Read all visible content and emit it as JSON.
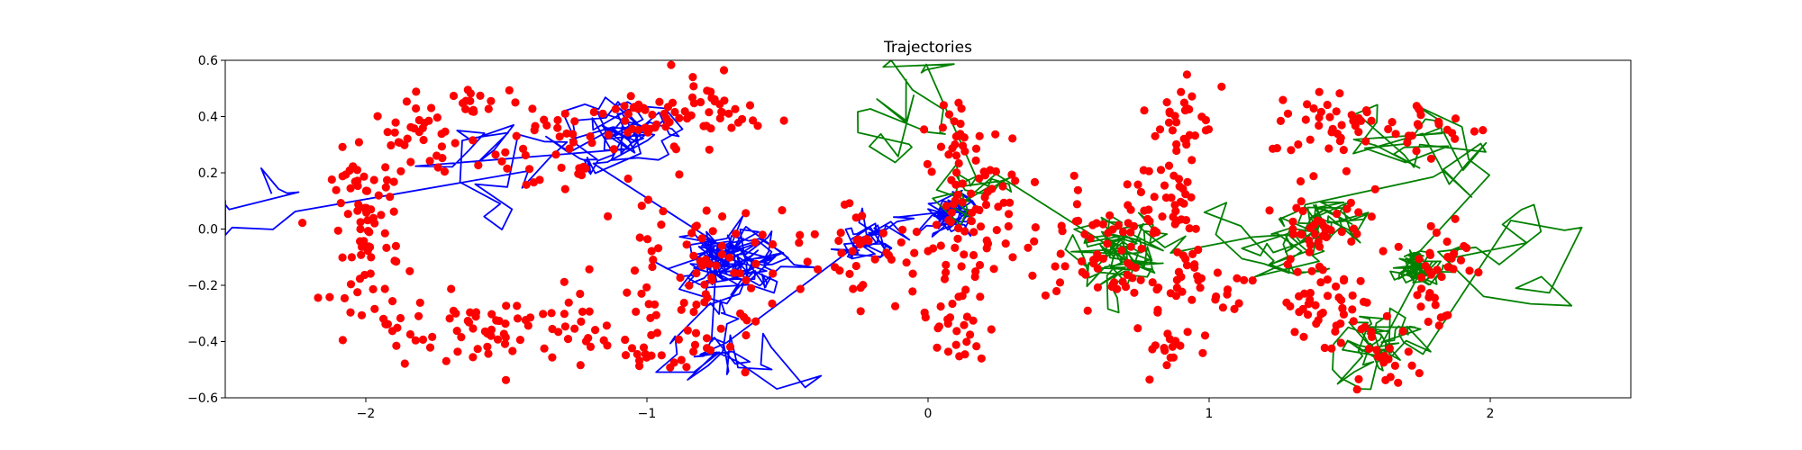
{
  "chart_data": {
    "type": "scatter",
    "title": "Trajectories",
    "xlabel": "",
    "ylabel": "",
    "xlim": [
      -2.5,
      2.5
    ],
    "ylim": [
      -0.6,
      0.6
    ],
    "xticks": [
      -2,
      -1,
      0,
      1,
      2
    ],
    "xtick_labels": [
      "−2",
      "−1",
      "0",
      "1",
      "2"
    ],
    "yticks": [
      -0.6,
      -0.4,
      -0.2,
      0.0,
      0.2,
      0.4,
      0.6
    ],
    "ytick_labels": [
      "−0.6",
      "−0.4",
      "−0.2",
      "0.0",
      "0.2",
      "0.4",
      "0.6"
    ],
    "grid": false,
    "colors": {
      "points": "#ff0000",
      "left_trajectory": "#0000ff",
      "right_trajectory": "#008000"
    },
    "series": [
      {
        "kind": "points",
        "color": "#ff0000",
        "clusters": [
          {
            "cx": -2.0,
            "cy": 0.0,
            "sx": 0.06,
            "sy": 0.14,
            "n": 70
          },
          {
            "cx": -1.8,
            "cy": 0.32,
            "sx": 0.09,
            "sy": 0.07,
            "n": 35
          },
          {
            "cx": -1.6,
            "cy": 0.44,
            "sx": 0.07,
            "sy": 0.04,
            "n": 18
          },
          {
            "cx": -1.42,
            "cy": 0.3,
            "sx": 0.09,
            "sy": 0.06,
            "n": 20
          },
          {
            "cx": -1.5,
            "cy": -0.37,
            "sx": 0.18,
            "sy": 0.07,
            "n": 60
          },
          {
            "cx": -1.88,
            "cy": -0.33,
            "sx": 0.05,
            "sy": 0.06,
            "n": 14
          },
          {
            "cx": -1.25,
            "cy": 0.22,
            "sx": 0.1,
            "sy": 0.07,
            "n": 15
          },
          {
            "cx": -1.0,
            "cy": 0.38,
            "sx": 0.1,
            "sy": 0.07,
            "n": 40
          },
          {
            "cx": -0.75,
            "cy": 0.41,
            "sx": 0.08,
            "sy": 0.06,
            "n": 30
          },
          {
            "cx": -0.8,
            "cy": -0.12,
            "sx": 0.18,
            "sy": 0.12,
            "n": 75
          },
          {
            "cx": -0.95,
            "cy": -0.4,
            "sx": 0.16,
            "sy": 0.06,
            "n": 35
          },
          {
            "cx": -0.25,
            "cy": -0.06,
            "sx": 0.08,
            "sy": 0.1,
            "n": 30
          },
          {
            "cx": 0.12,
            "cy": 0.0,
            "sx": 0.09,
            "sy": 0.16,
            "n": 80
          },
          {
            "cx": 0.1,
            "cy": -0.35,
            "sx": 0.06,
            "sy": 0.08,
            "n": 25
          },
          {
            "cx": 0.08,
            "cy": 0.33,
            "sx": 0.05,
            "sy": 0.07,
            "n": 18
          },
          {
            "cx": 0.6,
            "cy": 0.02,
            "sx": 0.09,
            "sy": 0.08,
            "n": 30
          },
          {
            "cx": 0.6,
            "cy": -0.17,
            "sx": 0.09,
            "sy": 0.05,
            "n": 22
          },
          {
            "cx": 0.9,
            "cy": 0.38,
            "sx": 0.05,
            "sy": 0.08,
            "n": 30
          },
          {
            "cx": 0.85,
            "cy": 0.1,
            "sx": 0.08,
            "sy": 0.1,
            "n": 40
          },
          {
            "cx": 0.95,
            "cy": -0.2,
            "sx": 0.12,
            "sy": 0.07,
            "n": 40
          },
          {
            "cx": 0.87,
            "cy": -0.43,
            "sx": 0.05,
            "sy": 0.05,
            "n": 15
          },
          {
            "cx": 1.45,
            "cy": 0.38,
            "sx": 0.12,
            "sy": 0.06,
            "n": 40
          },
          {
            "cx": 1.8,
            "cy": 0.36,
            "sx": 0.1,
            "sy": 0.05,
            "n": 20
          },
          {
            "cx": 1.4,
            "cy": 0.02,
            "sx": 0.08,
            "sy": 0.12,
            "n": 50
          },
          {
            "cx": 1.42,
            "cy": -0.3,
            "sx": 0.1,
            "sy": 0.08,
            "n": 40
          },
          {
            "cx": 1.8,
            "cy": -0.15,
            "sx": 0.06,
            "sy": 0.12,
            "n": 40
          },
          {
            "cx": 1.6,
            "cy": -0.48,
            "sx": 0.07,
            "sy": 0.03,
            "n": 15
          }
        ]
      },
      {
        "kind": "trajectory",
        "color": "#0000ff",
        "x_range": [
          -2.5,
          0.3
        ],
        "y_range": [
          -0.6,
          0.6
        ],
        "centers": [
          {
            "cx": -2.3,
            "cy": 0.05,
            "step": 0.15,
            "n": 12
          },
          {
            "cx": -1.5,
            "cy": 0.25,
            "step": 0.12,
            "n": 25
          },
          {
            "cx": -1.1,
            "cy": 0.3,
            "step": 0.1,
            "n": 80
          },
          {
            "cx": -0.7,
            "cy": -0.1,
            "step": 0.08,
            "n": 180
          },
          {
            "cx": -0.75,
            "cy": -0.45,
            "step": 0.1,
            "n": 40
          },
          {
            "cx": -0.2,
            "cy": -0.05,
            "step": 0.07,
            "n": 60
          },
          {
            "cx": 0.1,
            "cy": 0.05,
            "step": 0.04,
            "n": 120
          }
        ]
      },
      {
        "kind": "trajectory",
        "color": "#008000",
        "x_range": [
          -0.25,
          2.45
        ],
        "y_range": [
          -0.6,
          0.6
        ],
        "centers": [
          {
            "cx": -0.1,
            "cy": 0.45,
            "step": 0.1,
            "n": 25
          },
          {
            "cx": 0.1,
            "cy": 0.15,
            "step": 0.08,
            "n": 30
          },
          {
            "cx": 0.7,
            "cy": -0.1,
            "step": 0.09,
            "n": 120
          },
          {
            "cx": 1.3,
            "cy": 0.0,
            "step": 0.09,
            "n": 90
          },
          {
            "cx": 1.7,
            "cy": 0.3,
            "step": 0.12,
            "n": 40
          },
          {
            "cx": 1.75,
            "cy": -0.15,
            "step": 0.04,
            "n": 120
          },
          {
            "cx": 1.6,
            "cy": -0.4,
            "step": 0.07,
            "n": 80
          },
          {
            "cx": 2.1,
            "cy": -0.1,
            "step": 0.15,
            "n": 20
          }
        ]
      }
    ]
  }
}
